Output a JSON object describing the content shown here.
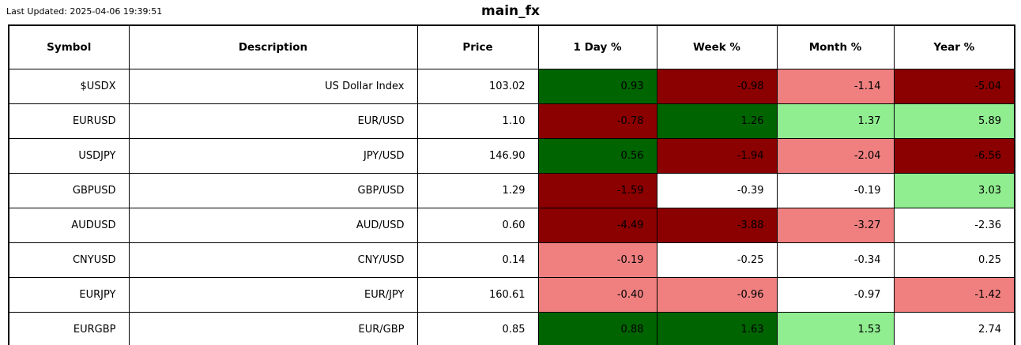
{
  "page": {
    "last_updated_label": "Last Updated: 2025-04-06 19:39:51",
    "title": "main_fx"
  },
  "colors": {
    "strong_gain": "#006400",
    "mild_gain": "#90EE90",
    "neutral": "#FFFFFF",
    "mild_loss": "#F08080",
    "strong_loss": "#8B0000",
    "text": "#000000",
    "border": "#000000"
  },
  "table": {
    "columns": [
      "Symbol",
      "Description",
      "Price",
      "1 Day %",
      "Week %",
      "Month %",
      "Year %"
    ],
    "rows": [
      {
        "symbol": "$USDX",
        "description": "US Dollar Index",
        "price": "103.02",
        "changes": [
          {
            "value": "0.93",
            "color": "strong_gain"
          },
          {
            "value": "-0.98",
            "color": "strong_loss"
          },
          {
            "value": "-1.14",
            "color": "mild_loss"
          },
          {
            "value": "-5.04",
            "color": "strong_loss"
          }
        ]
      },
      {
        "symbol": "EURUSD",
        "description": "EUR/USD",
        "price": "1.10",
        "changes": [
          {
            "value": "-0.78",
            "color": "strong_loss"
          },
          {
            "value": "1.26",
            "color": "strong_gain"
          },
          {
            "value": "1.37",
            "color": "mild_gain"
          },
          {
            "value": "5.89",
            "color": "mild_gain"
          }
        ]
      },
      {
        "symbol": "USDJPY",
        "description": "JPY/USD",
        "price": "146.90",
        "changes": [
          {
            "value": "0.56",
            "color": "strong_gain"
          },
          {
            "value": "-1.94",
            "color": "strong_loss"
          },
          {
            "value": "-2.04",
            "color": "mild_loss"
          },
          {
            "value": "-6.56",
            "color": "strong_loss"
          }
        ]
      },
      {
        "symbol": "GBPUSD",
        "description": "GBP/USD",
        "price": "1.29",
        "changes": [
          {
            "value": "-1.59",
            "color": "strong_loss"
          },
          {
            "value": "-0.39",
            "color": "neutral"
          },
          {
            "value": "-0.19",
            "color": "neutral"
          },
          {
            "value": "3.03",
            "color": "mild_gain"
          }
        ]
      },
      {
        "symbol": "AUDUSD",
        "description": "AUD/USD",
        "price": "0.60",
        "changes": [
          {
            "value": "-4.49",
            "color": "strong_loss"
          },
          {
            "value": "-3.88",
            "color": "strong_loss"
          },
          {
            "value": "-3.27",
            "color": "mild_loss"
          },
          {
            "value": "-2.36",
            "color": "neutral"
          }
        ]
      },
      {
        "symbol": "CNYUSD",
        "description": "CNY/USD",
        "price": "0.14",
        "changes": [
          {
            "value": "-0.19",
            "color": "mild_loss"
          },
          {
            "value": "-0.25",
            "color": "neutral"
          },
          {
            "value": "-0.34",
            "color": "neutral"
          },
          {
            "value": "0.25",
            "color": "neutral"
          }
        ]
      },
      {
        "symbol": "EURJPY",
        "description": "EUR/JPY",
        "price": "160.61",
        "changes": [
          {
            "value": "-0.40",
            "color": "mild_loss"
          },
          {
            "value": "-0.96",
            "color": "mild_loss"
          },
          {
            "value": "-0.97",
            "color": "neutral"
          },
          {
            "value": "-1.42",
            "color": "mild_loss"
          }
        ]
      },
      {
        "symbol": "EURGBP",
        "description": "EUR/GBP",
        "price": "0.85",
        "changes": [
          {
            "value": "0.88",
            "color": "strong_gain"
          },
          {
            "value": "1.63",
            "color": "strong_gain"
          },
          {
            "value": "1.53",
            "color": "mild_gain"
          },
          {
            "value": "2.74",
            "color": "neutral"
          }
        ]
      }
    ]
  },
  "chart_data": {
    "type": "table",
    "title": "main_fx",
    "subtitle": "Last Updated: 2025-04-06 19:39:51",
    "columns": [
      "Symbol",
      "Description",
      "Price",
      "1 Day %",
      "Week %",
      "Month %",
      "Year %"
    ],
    "rows": [
      [
        "$USDX",
        "US Dollar Index",
        103.02,
        0.93,
        -0.98,
        -1.14,
        -5.04
      ],
      [
        "EURUSD",
        "EUR/USD",
        1.1,
        -0.78,
        1.26,
        1.37,
        5.89
      ],
      [
        "USDJPY",
        "JPY/USD",
        146.9,
        0.56,
        -1.94,
        -2.04,
        -6.56
      ],
      [
        "GBPUSD",
        "GBP/USD",
        1.29,
        -1.59,
        -0.39,
        -0.19,
        3.03
      ],
      [
        "AUDUSD",
        "AUD/USD",
        0.6,
        -4.49,
        -3.88,
        -3.27,
        -2.36
      ],
      [
        "CNYUSD",
        "CNY/USD",
        0.14,
        -0.19,
        -0.25,
        -0.34,
        0.25
      ],
      [
        "EURJPY",
        "EUR/JPY",
        160.61,
        -0.4,
        -0.96,
        -0.97,
        -1.42
      ],
      [
        "EURGBP",
        "EUR/GBP",
        0.85,
        0.88,
        1.63,
        1.53,
        2.74
      ]
    ],
    "layout": {
      "color_legend": {
        "strong_gain": "#006400",
        "mild_gain": "#90EE90",
        "neutral": "#FFFFFF",
        "mild_loss": "#F08080",
        "strong_loss": "#8B0000"
      },
      "grid": true,
      "header_bold": true,
      "cell_text_color": "#000000"
    }
  }
}
